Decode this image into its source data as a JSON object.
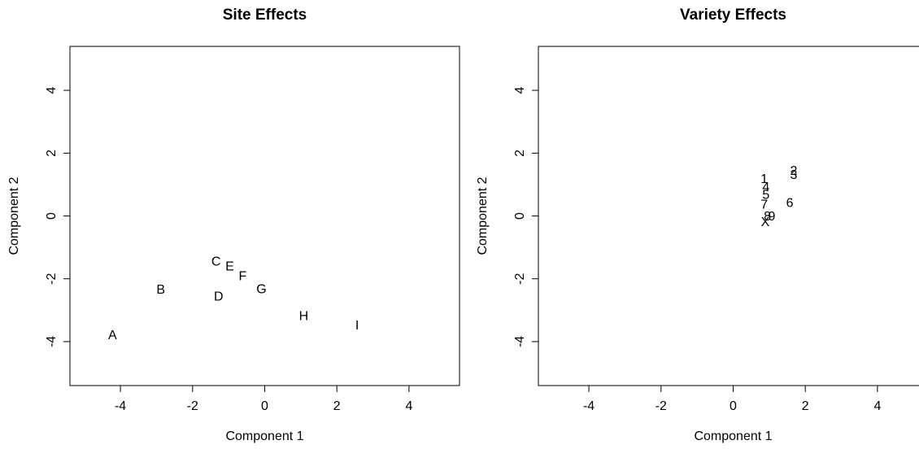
{
  "chart_data": [
    {
      "type": "scatter",
      "title": "Site Effects",
      "x_label": "Component 1",
      "y_label": "Component 2",
      "labels": [
        "A",
        "B",
        "C",
        "D",
        "E",
        "F",
        "G",
        "H",
        "I"
      ],
      "x": [
        -4.22,
        -2.88,
        -1.35,
        -1.28,
        -0.97,
        -0.61,
        -0.09,
        1.08,
        2.56
      ],
      "values": [
        -3.82,
        -2.37,
        -1.47,
        -2.58,
        -1.63,
        -1.94,
        -2.35,
        -3.2,
        -3.51
      ],
      "xlim": [
        -5.4,
        5.4
      ],
      "ylim": [
        -5.4,
        5.4
      ],
      "xticks": [
        -4,
        -2,
        0,
        2,
        4
      ],
      "yticks": [
        -4,
        -2,
        0,
        2,
        4
      ]
    },
    {
      "type": "scatter",
      "title": "Variety Effects",
      "x_label": "Component 1",
      "y_label": "Component 2",
      "labels": [
        "1",
        "2",
        "3",
        "4",
        "5",
        "6",
        "7",
        "8",
        "9",
        "X"
      ],
      "x": [
        0.86,
        1.68,
        1.68,
        0.91,
        0.91,
        1.57,
        0.86,
        0.95,
        1.07,
        0.89
      ],
      "values": [
        1.16,
        1.42,
        1.29,
        0.9,
        0.65,
        0.39,
        0.34,
        -0.03,
        -0.03,
        -0.21
      ],
      "xlim": [
        -5.4,
        5.4
      ],
      "ylim": [
        -5.4,
        5.4
      ],
      "xticks": [
        -4,
        -2,
        0,
        2,
        4
      ],
      "yticks": [
        -4,
        -2,
        0,
        2,
        4
      ]
    }
  ]
}
